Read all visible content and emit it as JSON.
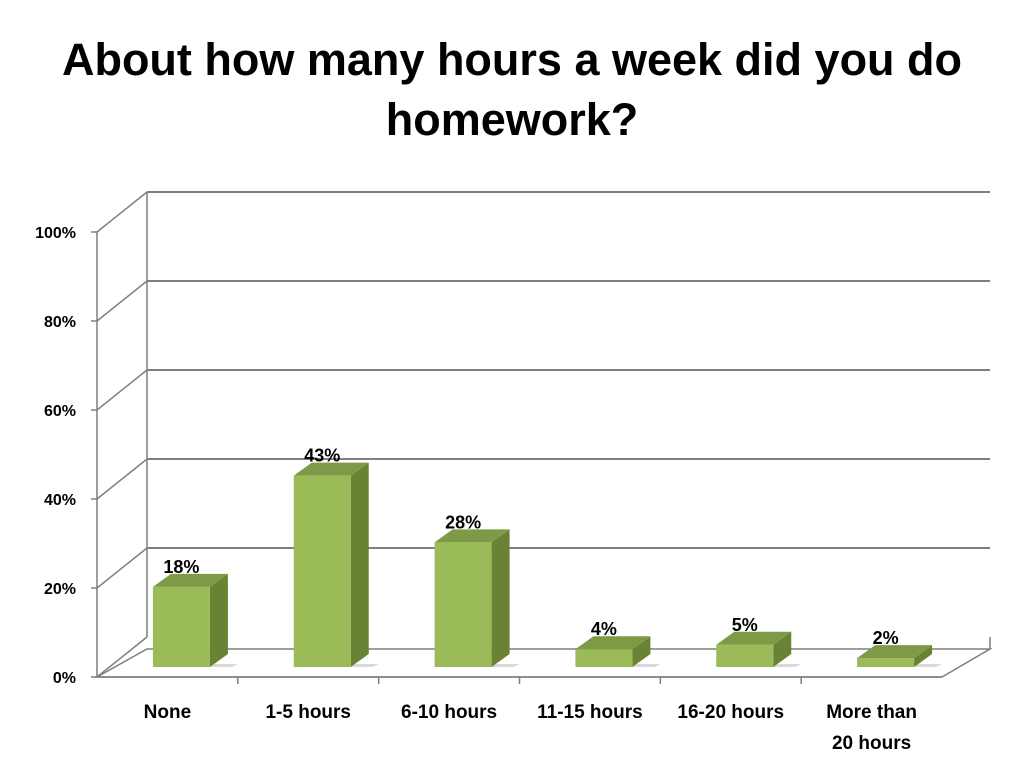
{
  "chart_data": {
    "type": "bar",
    "title": "About how many hours a week did you do homework?",
    "categories": [
      "None",
      "1-5 hours",
      "6-10 hours",
      "11-15 hours",
      "16-20 hours",
      "More than 20 hours"
    ],
    "series": [
      {
        "values": [
          18,
          43,
          28,
          4,
          5,
          2
        ]
      }
    ],
    "data_labels": [
      "18%",
      "43%",
      "28%",
      "4%",
      "5%",
      "2%"
    ],
    "ylim": [
      0,
      100
    ],
    "y_ticks": [
      0,
      20,
      40,
      60,
      80,
      100
    ],
    "y_tick_labels": [
      "0%",
      "20%",
      "40%",
      "60%",
      "80%",
      "100%"
    ],
    "grid": true,
    "style": "3d-column",
    "legend": "none",
    "colors": {
      "bar_front": "#9bbb59",
      "bar_side": "#6a8234",
      "bar_top": "#7f9a46",
      "grid": "#7f7f7f"
    }
  }
}
